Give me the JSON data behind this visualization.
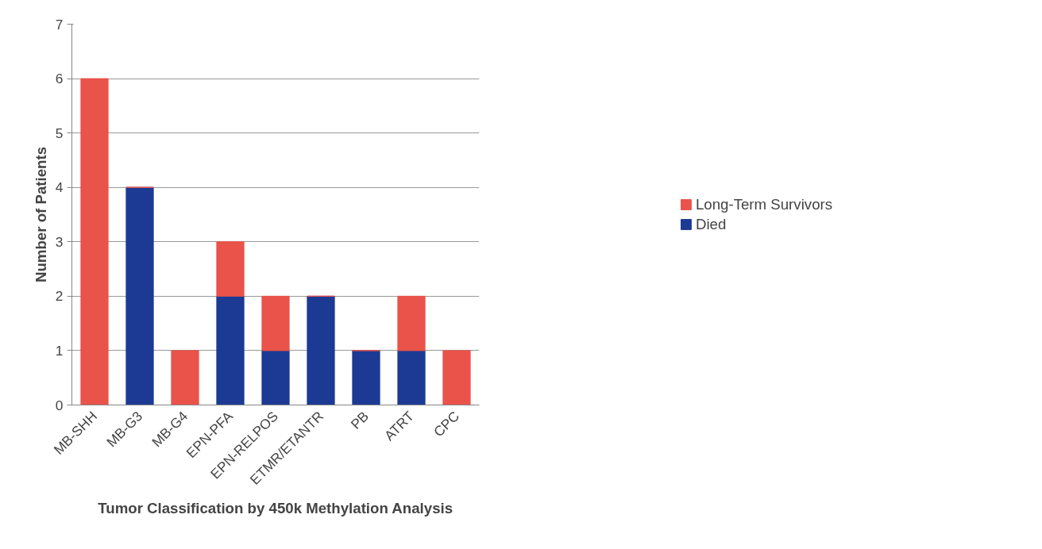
{
  "chart_data": {
    "type": "bar",
    "stacked": true,
    "xlabel": "Tumor Classification by 450k Methylation Analysis",
    "ylabel": "Number of Patients",
    "categories": [
      "MB-SHH",
      "MB-G3",
      "MB-G4",
      "EPN-PFA",
      "EPN-RELPOS",
      "ETMR/ETANTR",
      "PB",
      "ATRT",
      "CPC"
    ],
    "series": [
      {
        "name": "Died",
        "color": "#1c3a94",
        "values": [
          0,
          4,
          0,
          2,
          1,
          2,
          1,
          1,
          0
        ]
      },
      {
        "name": "Long-Term Survivors",
        "color": "#e9534a",
        "values": [
          6,
          0,
          1,
          1,
          1,
          0,
          0,
          1,
          1
        ]
      }
    ],
    "ylim": [
      0,
      7
    ],
    "yticks": [
      0,
      1,
      2,
      3,
      4,
      5,
      6,
      7
    ],
    "grid": "y",
    "legend": "right"
  }
}
